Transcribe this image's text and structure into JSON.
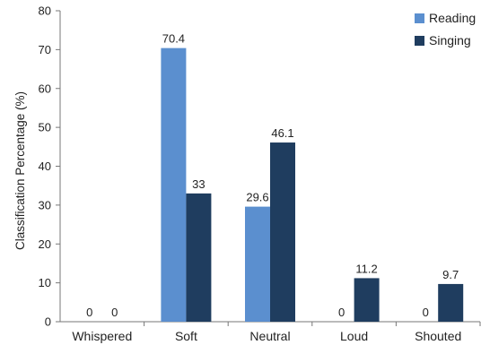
{
  "chart_data": {
    "type": "bar",
    "title": "",
    "xlabel": "",
    "ylabel": "Classification Percentage (%)",
    "ylim": [
      0,
      80
    ],
    "yticks": [
      0,
      10,
      20,
      30,
      40,
      50,
      60,
      70,
      80
    ],
    "grid": false,
    "legend_position": "top-right",
    "categories": [
      "Whispered",
      "Soft",
      "Neutral",
      "Loud",
      "Shouted"
    ],
    "series": [
      {
        "name": "Reading",
        "color": "#5b8fcf",
        "values": [
          0,
          70.4,
          29.6,
          0,
          0
        ]
      },
      {
        "name": "Singing",
        "color": "#1f3d5f",
        "values": [
          0,
          33,
          46.1,
          11.2,
          9.7
        ]
      }
    ]
  }
}
